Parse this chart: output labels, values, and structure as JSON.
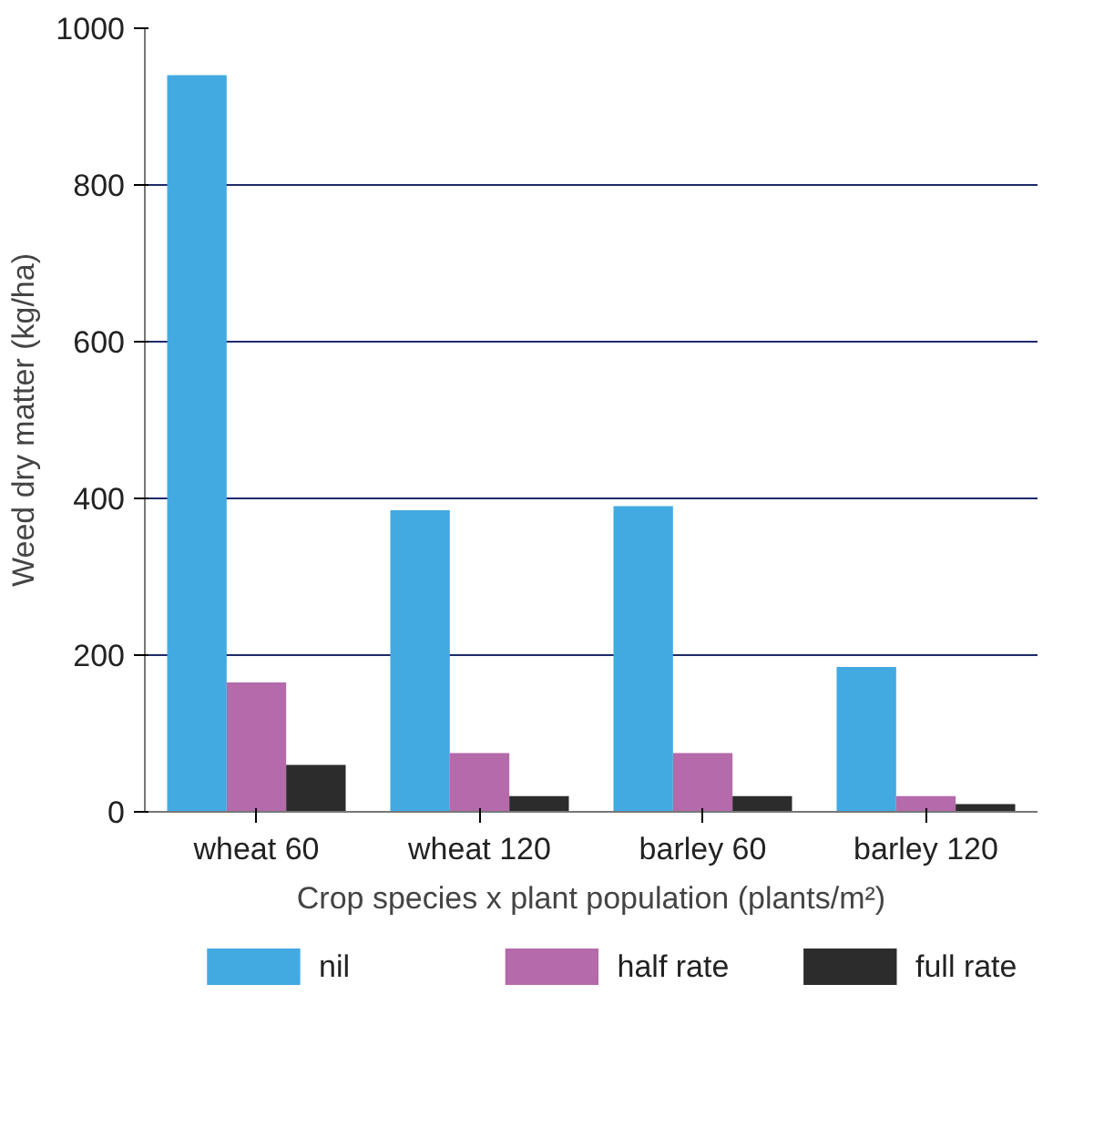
{
  "chart_data": {
    "type": "bar",
    "xlabel": "Crop species x plant population (plants/m²)",
    "ylabel": "Weed dry matter (kg/ha)",
    "categories": [
      "wheat 60",
      "wheat 120",
      "barley 60",
      "barley 120"
    ],
    "series": [
      {
        "name": "nil",
        "color": "#42aae1",
        "values": [
          940,
          385,
          390,
          185
        ]
      },
      {
        "name": "half rate",
        "color": "#b46aab",
        "values": [
          165,
          75,
          75,
          20
        ]
      },
      {
        "name": "full rate",
        "color": "#2c2c2c",
        "values": [
          60,
          20,
          20,
          10
        ]
      }
    ],
    "ylim": [
      0,
      1000
    ],
    "yticks": [
      0,
      200,
      400,
      600,
      800,
      1000
    ],
    "grid": "y",
    "legend": "bottom"
  }
}
